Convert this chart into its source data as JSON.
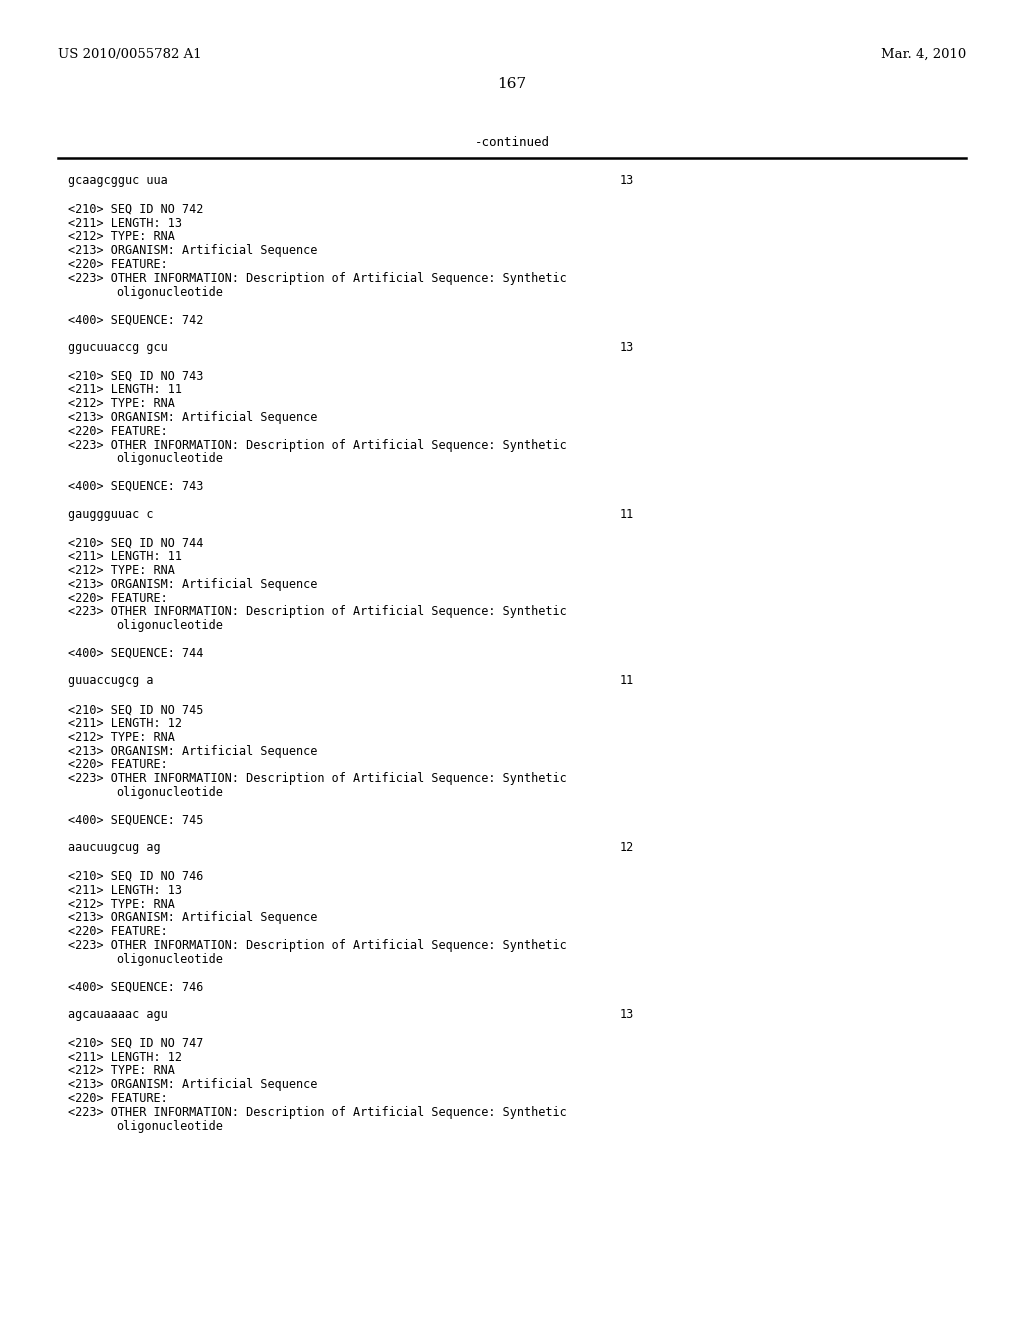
{
  "background_color": "#ffffff",
  "top_left_text": "US 2010/0055782 A1",
  "top_right_text": "Mar. 4, 2010",
  "page_number": "167",
  "continued_label": "-continued",
  "content": [
    {
      "type": "sequence_line",
      "text": "gcaagcgguc uua",
      "number": "13"
    },
    {
      "type": "blank2"
    },
    {
      "type": "blank2"
    },
    {
      "type": "field",
      "tag": "<210>",
      "value": "SEQ ID NO 742"
    },
    {
      "type": "field",
      "tag": "<211>",
      "value": "LENGTH: 13"
    },
    {
      "type": "field",
      "tag": "<212>",
      "value": "TYPE: RNA"
    },
    {
      "type": "field",
      "tag": "<213>",
      "value": "ORGANISM: Artificial Sequence"
    },
    {
      "type": "field",
      "tag": "<220>",
      "value": "FEATURE:"
    },
    {
      "type": "field_long",
      "tag": "<223>",
      "value": "OTHER INFORMATION: Description of Artificial Sequence: Synthetic",
      "continuation": "oligonucleotide"
    },
    {
      "type": "blank1"
    },
    {
      "type": "field",
      "tag": "<400>",
      "value": "SEQUENCE: 742"
    },
    {
      "type": "blank1"
    },
    {
      "type": "sequence_line",
      "text": "ggucuuaccg gcu",
      "number": "13"
    },
    {
      "type": "blank2"
    },
    {
      "type": "blank2"
    },
    {
      "type": "field",
      "tag": "<210>",
      "value": "SEQ ID NO 743"
    },
    {
      "type": "field",
      "tag": "<211>",
      "value": "LENGTH: 11"
    },
    {
      "type": "field",
      "tag": "<212>",
      "value": "TYPE: RNA"
    },
    {
      "type": "field",
      "tag": "<213>",
      "value": "ORGANISM: Artificial Sequence"
    },
    {
      "type": "field",
      "tag": "<220>",
      "value": "FEATURE:"
    },
    {
      "type": "field_long",
      "tag": "<223>",
      "value": "OTHER INFORMATION: Description of Artificial Sequence: Synthetic",
      "continuation": "oligonucleotide"
    },
    {
      "type": "blank1"
    },
    {
      "type": "field",
      "tag": "<400>",
      "value": "SEQUENCE: 743"
    },
    {
      "type": "blank1"
    },
    {
      "type": "sequence_line",
      "text": "gauggguuac c",
      "number": "11"
    },
    {
      "type": "blank2"
    },
    {
      "type": "blank2"
    },
    {
      "type": "field",
      "tag": "<210>",
      "value": "SEQ ID NO 744"
    },
    {
      "type": "field",
      "tag": "<211>",
      "value": "LENGTH: 11"
    },
    {
      "type": "field",
      "tag": "<212>",
      "value": "TYPE: RNA"
    },
    {
      "type": "field",
      "tag": "<213>",
      "value": "ORGANISM: Artificial Sequence"
    },
    {
      "type": "field",
      "tag": "<220>",
      "value": "FEATURE:"
    },
    {
      "type": "field_long",
      "tag": "<223>",
      "value": "OTHER INFORMATION: Description of Artificial Sequence: Synthetic",
      "continuation": "oligonucleotide"
    },
    {
      "type": "blank1"
    },
    {
      "type": "field",
      "tag": "<400>",
      "value": "SEQUENCE: 744"
    },
    {
      "type": "blank1"
    },
    {
      "type": "sequence_line",
      "text": "guuaccugcg a",
      "number": "11"
    },
    {
      "type": "blank2"
    },
    {
      "type": "blank2"
    },
    {
      "type": "field",
      "tag": "<210>",
      "value": "SEQ ID NO 745"
    },
    {
      "type": "field",
      "tag": "<211>",
      "value": "LENGTH: 12"
    },
    {
      "type": "field",
      "tag": "<212>",
      "value": "TYPE: RNA"
    },
    {
      "type": "field",
      "tag": "<213>",
      "value": "ORGANISM: Artificial Sequence"
    },
    {
      "type": "field",
      "tag": "<220>",
      "value": "FEATURE:"
    },
    {
      "type": "field_long",
      "tag": "<223>",
      "value": "OTHER INFORMATION: Description of Artificial Sequence: Synthetic",
      "continuation": "oligonucleotide"
    },
    {
      "type": "blank1"
    },
    {
      "type": "field",
      "tag": "<400>",
      "value": "SEQUENCE: 745"
    },
    {
      "type": "blank1"
    },
    {
      "type": "sequence_line",
      "text": "aaucuugcug ag",
      "number": "12"
    },
    {
      "type": "blank2"
    },
    {
      "type": "blank2"
    },
    {
      "type": "field",
      "tag": "<210>",
      "value": "SEQ ID NO 746"
    },
    {
      "type": "field",
      "tag": "<211>",
      "value": "LENGTH: 13"
    },
    {
      "type": "field",
      "tag": "<212>",
      "value": "TYPE: RNA"
    },
    {
      "type": "field",
      "tag": "<213>",
      "value": "ORGANISM: Artificial Sequence"
    },
    {
      "type": "field",
      "tag": "<220>",
      "value": "FEATURE:"
    },
    {
      "type": "field_long",
      "tag": "<223>",
      "value": "OTHER INFORMATION: Description of Artificial Sequence: Synthetic",
      "continuation": "oligonucleotide"
    },
    {
      "type": "blank1"
    },
    {
      "type": "field",
      "tag": "<400>",
      "value": "SEQUENCE: 746"
    },
    {
      "type": "blank1"
    },
    {
      "type": "sequence_line",
      "text": "agcauaaaac agu",
      "number": "13"
    },
    {
      "type": "blank2"
    },
    {
      "type": "blank2"
    },
    {
      "type": "field",
      "tag": "<210>",
      "value": "SEQ ID NO 747"
    },
    {
      "type": "field",
      "tag": "<211>",
      "value": "LENGTH: 12"
    },
    {
      "type": "field",
      "tag": "<212>",
      "value": "TYPE: RNA"
    },
    {
      "type": "field",
      "tag": "<213>",
      "value": "ORGANISM: Artificial Sequence"
    },
    {
      "type": "field",
      "tag": "<220>",
      "value": "FEATURE:"
    },
    {
      "type": "field_long",
      "tag": "<223>",
      "value": "OTHER INFORMATION: Description of Artificial Sequence: Synthetic",
      "continuation": "oligonucleotide"
    }
  ]
}
